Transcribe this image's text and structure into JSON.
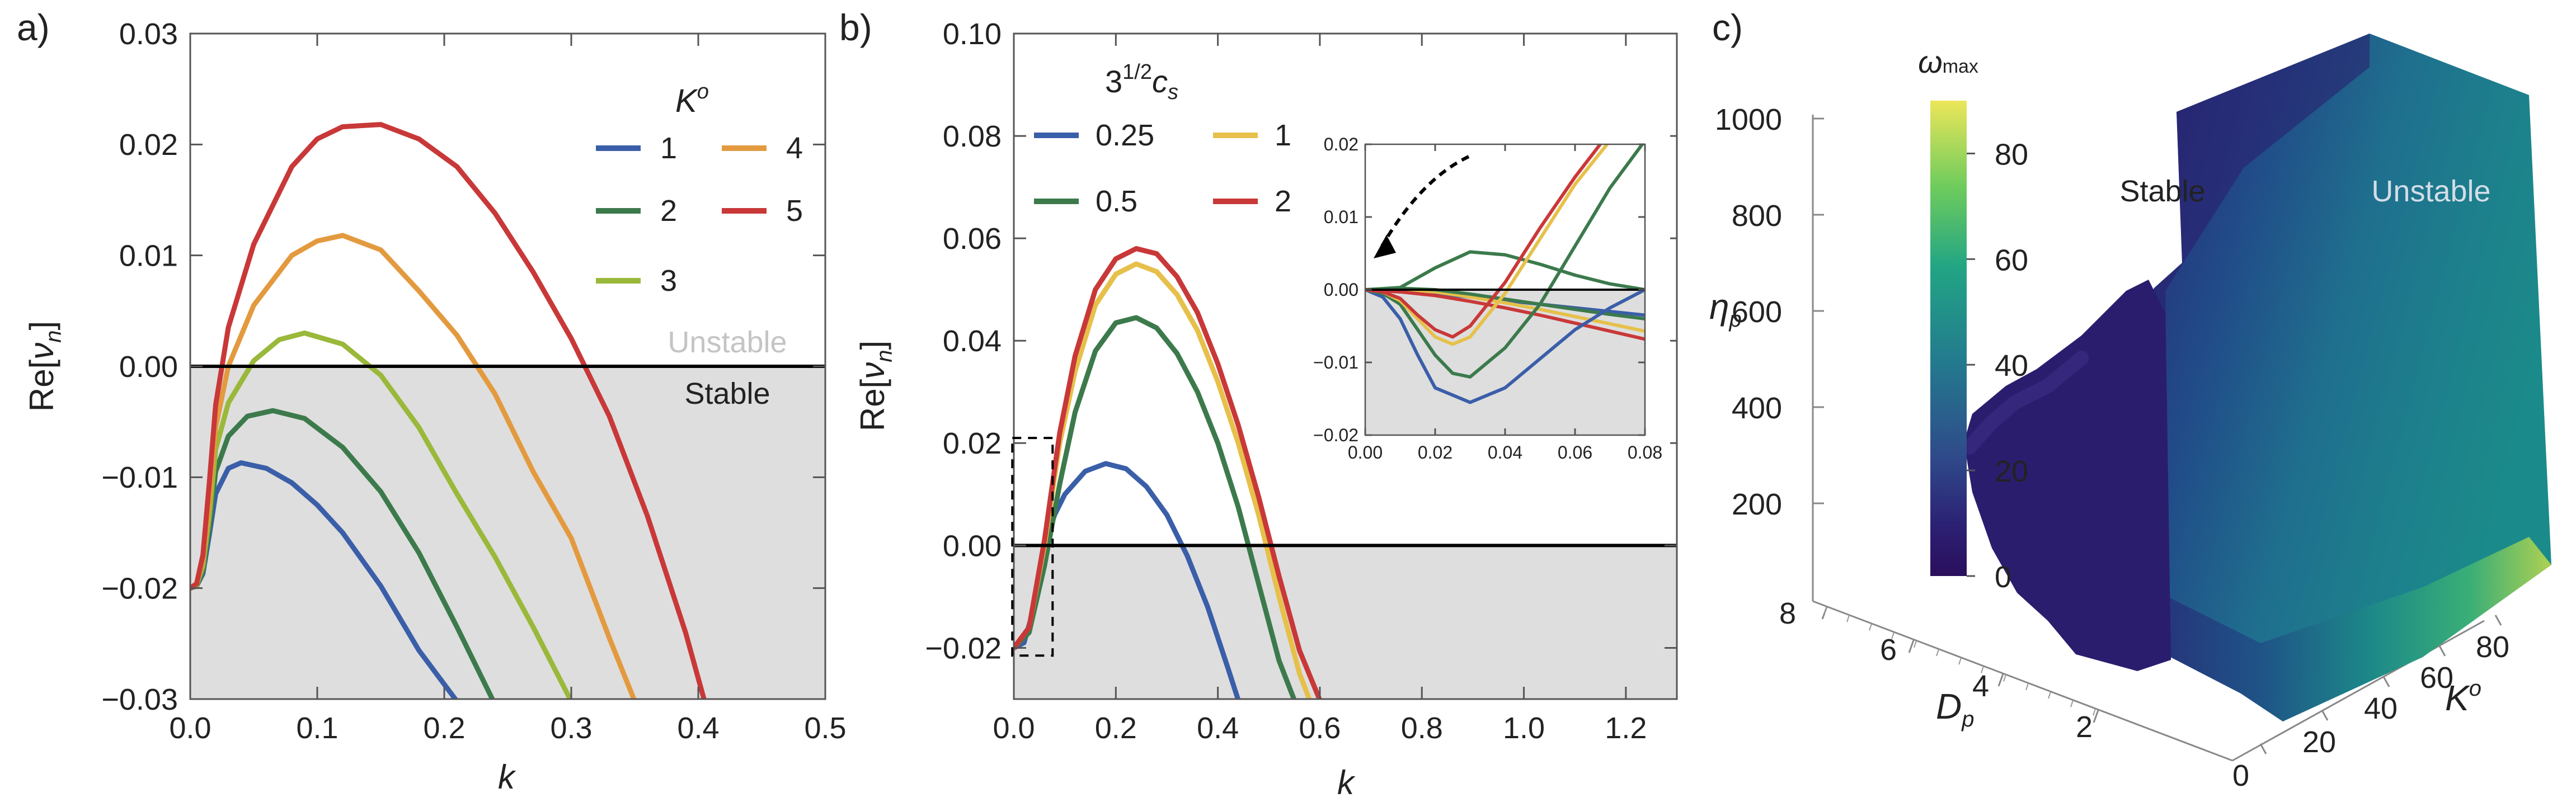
{
  "chart_data": [
    {
      "panel": "a)",
      "type": "line",
      "xlabel": "k",
      "ylabel": "Re[ν_n]",
      "xlim": [
        0,
        0.5
      ],
      "ylim": [
        -0.03,
        0.03
      ],
      "xticks": [
        "0.0",
        "0.1",
        "0.2",
        "0.3",
        "0.4",
        "0.5"
      ],
      "yticks": [
        "−0.03",
        "−0.02",
        "−0.01",
        "0.00",
        "0.01",
        "0.02",
        "0.03"
      ],
      "legend_title": "K",
      "legend_title_sup": "o",
      "legend_placement": "top-right",
      "region_labels": {
        "unstable": "Unstable",
        "stable": "Stable"
      },
      "series": [
        {
          "name": "1",
          "color": "#3a5ea8",
          "x": [
            0.0,
            0.005,
            0.01,
            0.015,
            0.02,
            0.03,
            0.04,
            0.06,
            0.08,
            0.1,
            0.12,
            0.15,
            0.18,
            0.21
          ],
          "y": [
            -0.02,
            -0.0198,
            -0.0187,
            -0.0152,
            -0.0115,
            -0.0092,
            -0.0087,
            -0.0092,
            -0.0105,
            -0.0125,
            -0.015,
            -0.0198,
            -0.0256,
            -0.0302
          ]
        },
        {
          "name": "2",
          "color": "#3c7a4c",
          "x": [
            0.0,
            0.005,
            0.01,
            0.015,
            0.02,
            0.03,
            0.045,
            0.065,
            0.09,
            0.12,
            0.15,
            0.18,
            0.21,
            0.24
          ],
          "y": [
            -0.02,
            -0.0198,
            -0.0185,
            -0.0145,
            -0.0095,
            -0.0063,
            -0.0045,
            -0.004,
            -0.0047,
            -0.0073,
            -0.0113,
            -0.0168,
            -0.0235,
            -0.0305
          ]
        },
        {
          "name": "3",
          "color": "#9ab83a",
          "x": [
            0.0,
            0.005,
            0.01,
            0.015,
            0.02,
            0.03,
            0.05,
            0.07,
            0.09,
            0.12,
            0.15,
            0.18,
            0.21,
            0.24,
            0.27,
            0.3
          ],
          "y": [
            -0.02,
            -0.0197,
            -0.018,
            -0.0135,
            -0.0075,
            -0.0033,
            0.0005,
            0.0024,
            0.003,
            0.002,
            -0.0008,
            -0.0055,
            -0.0115,
            -0.0172,
            -0.0235,
            -0.0302
          ]
        },
        {
          "name": "4",
          "color": "#e39a3f",
          "x": [
            0.0,
            0.005,
            0.01,
            0.015,
            0.02,
            0.03,
            0.05,
            0.08,
            0.1,
            0.12,
            0.15,
            0.18,
            0.21,
            0.24,
            0.27,
            0.3,
            0.33,
            0.35
          ],
          "y": [
            -0.02,
            -0.0196,
            -0.0175,
            -0.012,
            -0.0055,
            0.0,
            0.0055,
            0.01,
            0.0113,
            0.0118,
            0.0105,
            0.0068,
            0.0028,
            -0.0025,
            -0.0095,
            -0.0155,
            -0.0245,
            -0.0302
          ]
        },
        {
          "name": "5",
          "color": "#c93838",
          "x": [
            0.0,
            0.005,
            0.01,
            0.015,
            0.02,
            0.03,
            0.05,
            0.08,
            0.1,
            0.12,
            0.15,
            0.18,
            0.21,
            0.24,
            0.27,
            0.3,
            0.33,
            0.36,
            0.39,
            0.405
          ],
          "y": [
            -0.02,
            -0.0196,
            -0.017,
            -0.0105,
            -0.0035,
            0.0035,
            0.011,
            0.018,
            0.0205,
            0.0216,
            0.0218,
            0.0205,
            0.018,
            0.0138,
            0.0085,
            0.0025,
            -0.0045,
            -0.0135,
            -0.024,
            -0.0302
          ]
        }
      ]
    },
    {
      "panel": "b)",
      "type": "line",
      "xlabel": "k",
      "ylabel": "Re[ν_n]",
      "xlim": [
        0,
        1.3
      ],
      "ylim": [
        -0.03,
        0.1
      ],
      "xticks": [
        "0.0",
        "0.2",
        "0.4",
        "0.6",
        "0.8",
        "1.0",
        "1.2"
      ],
      "yticks": [
        "−0.02",
        "0.00",
        "0.02",
        "0.04",
        "0.06",
        "0.08",
        "0.10"
      ],
      "legend_title": "3",
      "legend_title_sup": "1/2",
      "legend_title_var": "c",
      "legend_title_sub": "s",
      "legend_placement": "top-left",
      "series": [
        {
          "name": "0.25",
          "color": "#3a5ea8",
          "x": [
            0.0,
            0.02,
            0.04,
            0.06,
            0.08,
            0.1,
            0.14,
            0.18,
            0.22,
            0.26,
            0.3,
            0.34,
            0.38,
            0.42,
            0.44
          ],
          "y": [
            -0.02,
            -0.019,
            -0.012,
            0.0,
            0.006,
            0.01,
            0.0145,
            0.016,
            0.015,
            0.0115,
            0.006,
            -0.002,
            -0.012,
            -0.024,
            -0.0302
          ]
        },
        {
          "name": "0.5",
          "color": "#3c7a4c",
          "x": [
            0.0,
            0.03,
            0.06,
            0.09,
            0.12,
            0.16,
            0.2,
            0.24,
            0.28,
            0.32,
            0.36,
            0.4,
            0.44,
            0.48,
            0.52,
            0.55
          ],
          "y": [
            -0.02,
            -0.017,
            -0.004,
            0.012,
            0.026,
            0.038,
            0.0435,
            0.0445,
            0.0425,
            0.0375,
            0.03,
            0.02,
            0.0075,
            -0.0075,
            -0.0225,
            -0.0302
          ]
        },
        {
          "name": "1",
          "color": "#e6c04a",
          "x": [
            0.0,
            0.03,
            0.06,
            0.09,
            0.12,
            0.16,
            0.2,
            0.24,
            0.28,
            0.32,
            0.36,
            0.4,
            0.44,
            0.48,
            0.52,
            0.56,
            0.58
          ],
          "y": [
            -0.02,
            -0.016,
            0.0,
            0.02,
            0.034,
            0.047,
            0.053,
            0.055,
            0.0535,
            0.049,
            0.042,
            0.032,
            0.02,
            0.006,
            -0.01,
            -0.025,
            -0.0302
          ]
        },
        {
          "name": "2",
          "color": "#c93838",
          "x": [
            0.0,
            0.03,
            0.06,
            0.09,
            0.12,
            0.16,
            0.2,
            0.24,
            0.28,
            0.32,
            0.36,
            0.4,
            0.44,
            0.48,
            0.52,
            0.56,
            0.6
          ],
          "y": [
            -0.02,
            -0.016,
            0.001,
            0.022,
            0.037,
            0.05,
            0.056,
            0.058,
            0.057,
            0.0525,
            0.0455,
            0.0355,
            0.0235,
            0.0095,
            -0.006,
            -0.0205,
            -0.0302
          ]
        }
      ],
      "inset": {
        "xlim": [
          0,
          0.08
        ],
        "ylim": [
          -0.02,
          0.02
        ],
        "xticks": [
          "0.00",
          "0.02",
          "0.04",
          "0.06",
          "0.08"
        ],
        "yticks": [
          "−0.02",
          "−0.01",
          "0.00",
          "0.01",
          "0.02"
        ],
        "series": [
          {
            "name": "0.25",
            "color": "#3a5ea8",
            "x": [
              0,
              0.005,
              0.01,
              0.015,
              0.02,
              0.03,
              0.04,
              0.05,
              0.06,
              0.07,
              0.08
            ],
            "y": [
              0,
              -0.001,
              -0.004,
              -0.009,
              -0.0135,
              -0.0155,
              -0.0135,
              -0.0095,
              -0.0055,
              -0.0025,
              0.0
            ]
          },
          {
            "name": "0.5",
            "color": "#3c7a4c",
            "x": [
              0,
              0.005,
              0.01,
              0.015,
              0.02,
              0.025,
              0.03,
              0.04,
              0.05,
              0.06,
              0.07,
              0.08
            ],
            "y": [
              0,
              -0.0005,
              -0.002,
              -0.0055,
              -0.009,
              -0.0115,
              -0.012,
              -0.008,
              -0.002,
              0.006,
              0.014,
              0.0205
            ]
          },
          {
            "name": "1",
            "color": "#e6c04a",
            "x": [
              0,
              0.005,
              0.01,
              0.015,
              0.02,
              0.025,
              0.03,
              0.04,
              0.05,
              0.06,
              0.07
            ],
            "y": [
              0,
              -0.0003,
              -0.0015,
              -0.004,
              -0.0065,
              -0.0075,
              -0.0065,
              -0.0005,
              0.007,
              0.0145,
              0.0205
            ]
          },
          {
            "name": "2",
            "color": "#c93838",
            "x": [
              0,
              0.005,
              0.01,
              0.015,
              0.02,
              0.025,
              0.03,
              0.04,
              0.05,
              0.06,
              0.068
            ],
            "y": [
              0,
              -0.0003,
              -0.0012,
              -0.0035,
              -0.0055,
              -0.0065,
              -0.005,
              0.001,
              0.0085,
              0.0155,
              0.0205
            ]
          }
        ],
        "group_lines": [
          {
            "color": "#3a5ea8",
            "x": [
              0,
              0.01,
              0.02,
              0.03,
              0.04,
              0.05,
              0.06,
              0.07,
              0.08
            ],
            "y": [
              0,
              -0.0003,
              -0.0006,
              -0.001,
              -0.0015,
              -0.002,
              -0.0025,
              -0.003,
              -0.0035
            ]
          },
          {
            "color": "#e6c04a",
            "x": [
              0,
              0.01,
              0.02,
              0.03,
              0.04,
              0.05,
              0.06,
              0.07,
              0.08
            ],
            "y": [
              0,
              0.0,
              -0.0003,
              -0.001,
              -0.0018,
              -0.0027,
              -0.0037,
              -0.0047,
              -0.0057
            ]
          },
          {
            "color": "#c93838",
            "x": [
              0,
              0.01,
              0.02,
              0.03,
              0.04,
              0.05,
              0.06,
              0.07,
              0.08
            ],
            "y": [
              0,
              -0.0003,
              -0.0008,
              -0.0016,
              -0.0025,
              -0.0035,
              -0.0046,
              -0.0057,
              -0.0068
            ]
          },
          {
            "color": "#3c7a4c",
            "x": [
              0,
              0.01,
              0.02,
              0.03,
              0.04,
              0.05,
              0.06,
              0.07,
              0.08
            ],
            "y": [
              0,
              0.0002,
              0.0,
              -0.0006,
              -0.0013,
              -0.002,
              -0.0027,
              -0.0034,
              -0.004
            ]
          },
          {
            "color": "#3c7a4c",
            "x": [
              0,
              0.01,
              0.02,
              0.03,
              0.04,
              0.05,
              0.06,
              0.07,
              0.08
            ],
            "y": [
              0,
              0.0003,
              0.003,
              0.0052,
              0.0048,
              0.0035,
              0.002,
              0.0008,
              0.0
            ]
          }
        ]
      }
    },
    {
      "panel": "c)",
      "type": "heatmap",
      "colorbar_label": "ω",
      "colorbar_label_sub": "max",
      "colorbar_ticks": [
        "0",
        "20",
        "40",
        "60",
        "80"
      ],
      "colorbar_range": [
        0,
        90
      ],
      "eta_label": "η",
      "eta_label_sub": "p",
      "eta_ticks": [
        "200",
        "400",
        "600",
        "800",
        "1000"
      ],
      "dp_label": "D",
      "dp_label_sub": "p",
      "dp_ticks": [
        "2",
        "4",
        "6",
        "8"
      ],
      "k_label": "K",
      "k_label_sup": "o",
      "k_ticks": [
        "0",
        "20",
        "40",
        "60",
        "80"
      ],
      "region_labels": {
        "stable": "Stable",
        "unstable": "Unstable"
      }
    }
  ]
}
